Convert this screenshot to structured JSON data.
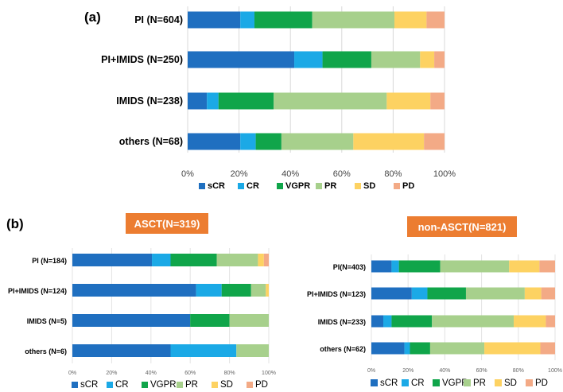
{
  "labels": {
    "a": "(a)",
    "b": "(b)"
  },
  "colors": {
    "sCR": "#1f6fc0",
    "CR": "#1ba9e6",
    "VGPR": "#10a54a",
    "PR": "#a7d08c",
    "SD": "#fdd262",
    "PD": "#f3aa86",
    "title_box": "#ec7d31"
  },
  "chart_data": [
    {
      "id": "a",
      "type": "bar",
      "orientation": "horizontal",
      "stacked": true,
      "title": "",
      "categories": [
        "PI (N=604)",
        "PI+IMIDS (N=250)",
        "IMIDS (N=238)",
        "others (N=68)"
      ],
      "series": [
        {
          "name": "sCR",
          "values": [
            20.5,
            41.5,
            7.5,
            20.5
          ]
        },
        {
          "name": "CR",
          "values": [
            5.5,
            11,
            4.5,
            6
          ]
        },
        {
          "name": "VGPR",
          "values": [
            22.5,
            19,
            21.5,
            10
          ]
        },
        {
          "name": "PR",
          "values": [
            32,
            19,
            44,
            28
          ]
        },
        {
          "name": "SD",
          "values": [
            12.5,
            5.5,
            17,
            27.5
          ]
        },
        {
          "name": "PD",
          "values": [
            7,
            4,
            5.5,
            8
          ]
        }
      ],
      "xlim": [
        0,
        100
      ],
      "xticks": [
        "0%",
        "20%",
        "40%",
        "60%",
        "80%",
        "100%"
      ],
      "legend": [
        "sCR",
        "CR",
        "VGPR",
        "PR",
        "SD",
        "PD"
      ],
      "legend_position": "bottom"
    },
    {
      "id": "b-left",
      "type": "bar",
      "orientation": "horizontal",
      "stacked": true,
      "title": "ASCT(N=319)",
      "categories": [
        "PI (N=184)",
        "PI+IMIDS (N=124)",
        "IMIDS (N=5)",
        "others (N=6)"
      ],
      "series": [
        {
          "name": "sCR",
          "values": [
            40.5,
            63,
            60,
            50
          ]
        },
        {
          "name": "CR",
          "values": [
            9.5,
            13,
            0,
            33.5
          ]
        },
        {
          "name": "VGPR",
          "values": [
            23.5,
            15,
            20,
            0
          ]
        },
        {
          "name": "PR",
          "values": [
            21,
            7.5,
            20,
            16.5
          ]
        },
        {
          "name": "SD",
          "values": [
            3,
            1.5,
            0,
            0
          ]
        },
        {
          "name": "PD",
          "values": [
            2.5,
            0,
            0,
            0
          ]
        }
      ],
      "xlim": [
        0,
        100
      ],
      "xticks": [
        "0%",
        "20%",
        "40%",
        "60%",
        "80%",
        "100%"
      ],
      "legend": [
        "sCR",
        "CR",
        "VGPR",
        "PR",
        "SD",
        "PD"
      ],
      "legend_position": "bottom"
    },
    {
      "id": "b-right",
      "type": "bar",
      "orientation": "horizontal",
      "stacked": true,
      "title": "non-ASCT(N=821)",
      "categories": [
        "PI(N=403)",
        "PI+IMIDS (N=123)",
        "IMIDS (N=233)",
        "others (N=62)"
      ],
      "series": [
        {
          "name": "sCR",
          "values": [
            11,
            22,
            6.5,
            18
          ]
        },
        {
          "name": "CR",
          "values": [
            4,
            8.5,
            4.5,
            3
          ]
        },
        {
          "name": "VGPR",
          "values": [
            22.5,
            21,
            22,
            11
          ]
        },
        {
          "name": "PR",
          "values": [
            37.5,
            32,
            44.5,
            29.5
          ]
        },
        {
          "name": "SD",
          "values": [
            16.5,
            9,
            17.5,
            30.5
          ]
        },
        {
          "name": "PD",
          "values": [
            8.5,
            7.5,
            5,
            8
          ]
        }
      ],
      "xlim": [
        0,
        100
      ],
      "xticks": [
        "0%",
        "20%",
        "40%",
        "60%",
        "80%",
        "100%"
      ],
      "legend": [
        "sCR",
        "CR",
        "VGPR",
        "PR",
        "SD",
        "PD"
      ],
      "legend_position": "bottom"
    }
  ]
}
